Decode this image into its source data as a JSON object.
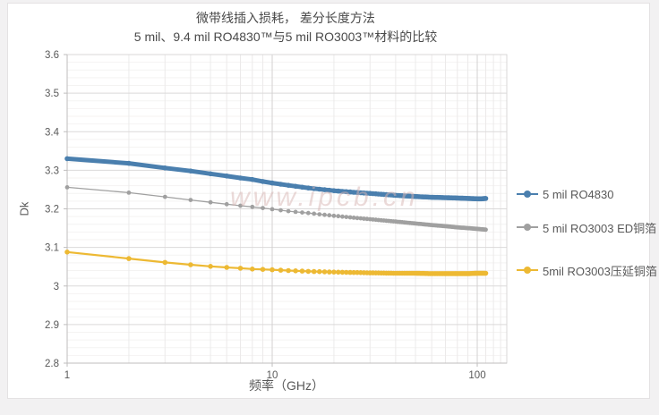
{
  "page": {
    "watermark": "www.ipcb.cn"
  },
  "chart_data": {
    "type": "line",
    "title": "微带线插入损耗， 差分长度方法",
    "subtitle": "5 mil、9.4 mil RO4830™与5 mil RO3003™材料的比较",
    "xlabel": "频率（GHz）",
    "ylabel": "Dk",
    "x_scale": "log",
    "xlim": [
      1,
      140
    ],
    "ylim": [
      2.8,
      3.6
    ],
    "x_ticks": [
      1,
      10,
      100
    ],
    "y_ticks": [
      2.8,
      2.9,
      3,
      3.1,
      3.2,
      3.3,
      3.4,
      3.5,
      3.6
    ],
    "grid": true,
    "legend_position": "right",
    "x": [
      1,
      2,
      3,
      4,
      5,
      6,
      7,
      8,
      9,
      10,
      12,
      15,
      20,
      25,
      30,
      40,
      50,
      60,
      70,
      80,
      90,
      100,
      105,
      110
    ],
    "series": [
      {
        "name": "5 mil RO4830",
        "color": "#4a7fae",
        "values": [
          3.33,
          3.318,
          3.306,
          3.298,
          3.291,
          3.285,
          3.28,
          3.276,
          3.271,
          3.267,
          3.261,
          3.254,
          3.247,
          3.243,
          3.24,
          3.235,
          3.232,
          3.23,
          3.229,
          3.228,
          3.227,
          3.226,
          3.226,
          3.227
        ]
      },
      {
        "name": "5 mil RO3003 ED铜箔",
        "color": "#a0a0a0",
        "values": [
          3.256,
          3.242,
          3.231,
          3.223,
          3.217,
          3.212,
          3.208,
          3.205,
          3.202,
          3.199,
          3.194,
          3.189,
          3.182,
          3.177,
          3.173,
          3.167,
          3.162,
          3.158,
          3.155,
          3.152,
          3.15,
          3.148,
          3.147,
          3.146
        ]
      },
      {
        "name": "5mil RO3003压延铜箔",
        "color": "#edb933",
        "values": [
          3.088,
          3.071,
          3.061,
          3.055,
          3.051,
          3.048,
          3.046,
          3.044,
          3.043,
          3.042,
          3.04,
          3.038,
          3.036,
          3.035,
          3.034,
          3.033,
          3.033,
          3.032,
          3.032,
          3.032,
          3.032,
          3.033,
          3.033,
          3.033
        ]
      }
    ]
  }
}
